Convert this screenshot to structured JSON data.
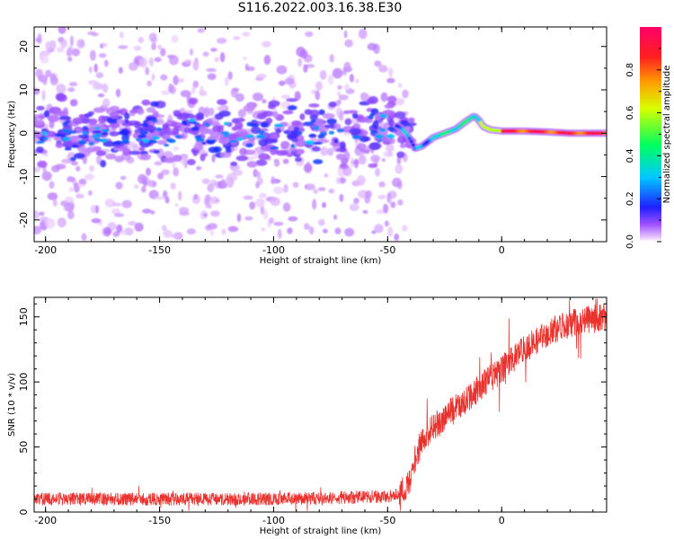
{
  "title": "S116.2022.003.16.38.E30",
  "chart_data": [
    {
      "type": "heatmap",
      "xlabel": "Height of straight line (km)",
      "ylabel": "Frequency (Hz)",
      "xlim": [
        -205,
        46
      ],
      "ylim": [
        -25,
        24.5
      ],
      "xticks": [
        -200,
        -150,
        -100,
        -50,
        0
      ],
      "yticks": [
        -20,
        -10,
        0,
        10,
        20
      ],
      "colorbar": {
        "label": "Normalized spectral amplitude",
        "range": [
          0,
          1
        ],
        "ticks": [
          "0.0",
          "0.2",
          "0.4",
          "0.6",
          "0.8"
        ],
        "colormap": "gist_rainbow (white at low end, pink/red at high end)"
      },
      "ridge": {
        "x": [
          -205,
          -180,
          -160,
          -140,
          -120,
          -100,
          -80,
          -60,
          -50,
          -45,
          -42,
          -40,
          -38,
          -35,
          -30,
          -25,
          -20,
          -15,
          -12,
          -10,
          -8,
          -5,
          0,
          10,
          20,
          30,
          46
        ],
        "y": [
          -1,
          -0.5,
          0,
          0,
          0.2,
          -0.5,
          0,
          1,
          2.5,
          1.5,
          0,
          -1.5,
          -3.5,
          -3,
          -1,
          0,
          1,
          3,
          4,
          3,
          1.5,
          0.8,
          0.5,
          0.5,
          0.3,
          0,
          0
        ]
      }
    },
    {
      "type": "line",
      "xlabel": "Height of straight line (km)",
      "ylabel": "SNR (10 * v/v)",
      "xlim": [
        -205,
        46
      ],
      "ylim": [
        0,
        165
      ],
      "xticks": [
        -200,
        -150,
        -100,
        -50,
        0
      ],
      "yticks": [
        0,
        50,
        100,
        150
      ],
      "color": "#e8332f",
      "trend": {
        "x": [
          -205,
          -100,
          -50,
          -45,
          -42,
          -40,
          -38,
          -35,
          -30,
          -25,
          -20,
          -10,
          0,
          10,
          20,
          30,
          46
        ],
        "y": [
          10,
          10,
          12,
          14,
          18,
          25,
          40,
          55,
          65,
          72,
          80,
          95,
          110,
          125,
          138,
          145,
          150
        ]
      }
    }
  ]
}
